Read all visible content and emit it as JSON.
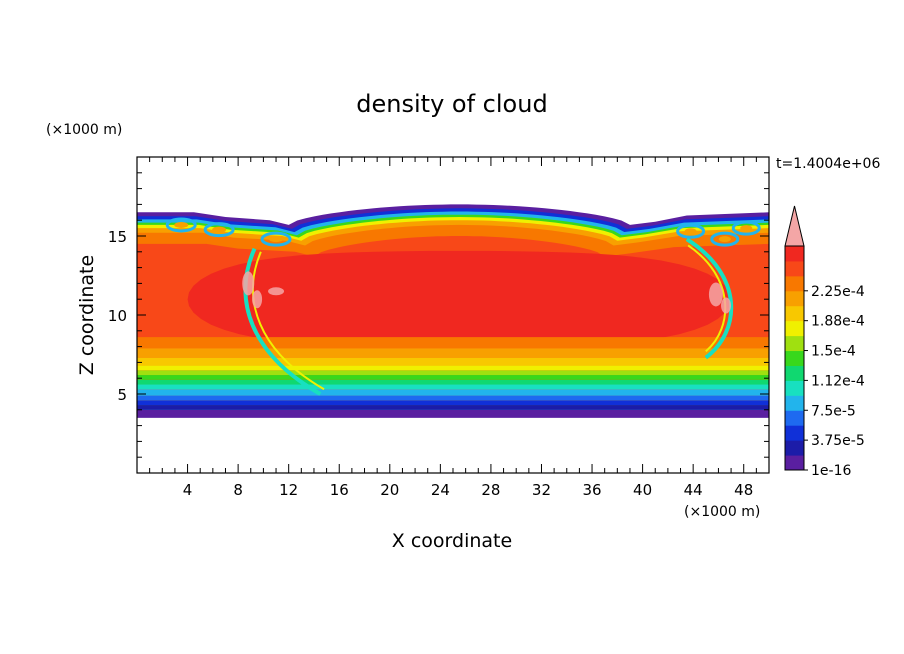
{
  "chart_data": {
    "type": "heatmap",
    "title": "density of cloud",
    "xlabel": "X coordinate",
    "ylabel": "Z coordinate",
    "x_unit": "(×1000 m)",
    "y_unit": "(×1000 m)",
    "time_label": "t=1.4004e+06",
    "xlim": [
      0,
      50
    ],
    "ylim": [
      0,
      20
    ],
    "x_ticks": [
      4,
      8,
      12,
      16,
      20,
      24,
      28,
      32,
      36,
      40,
      44,
      48
    ],
    "y_ticks": [
      5,
      10,
      15
    ],
    "colorbar": {
      "labels": [
        "1e-16",
        "3.75e-5",
        "7.5e-5",
        "1.12e-4",
        "1.5e-4",
        "1.88e-4",
        "2.25e-4"
      ],
      "colors": [
        "#5a1fa0",
        "#1c1ca8",
        "#1030d8",
        "#1e6af0",
        "#22b4ec",
        "#18e0c0",
        "#10d870",
        "#38d81c",
        "#a0e010",
        "#f0f000",
        "#f8c800",
        "#f8a000",
        "#f87800",
        "#f84818",
        "#f02820"
      ],
      "overflow_color": "#f4a6a6"
    },
    "field_description": {
      "cloud_base_z": 3.5,
      "cloud_top_z": 16.5,
      "dome_top_z": 17.0,
      "core_range_z": [
        8.5,
        14.0
      ],
      "max_label": "2.25e-4"
    }
  }
}
